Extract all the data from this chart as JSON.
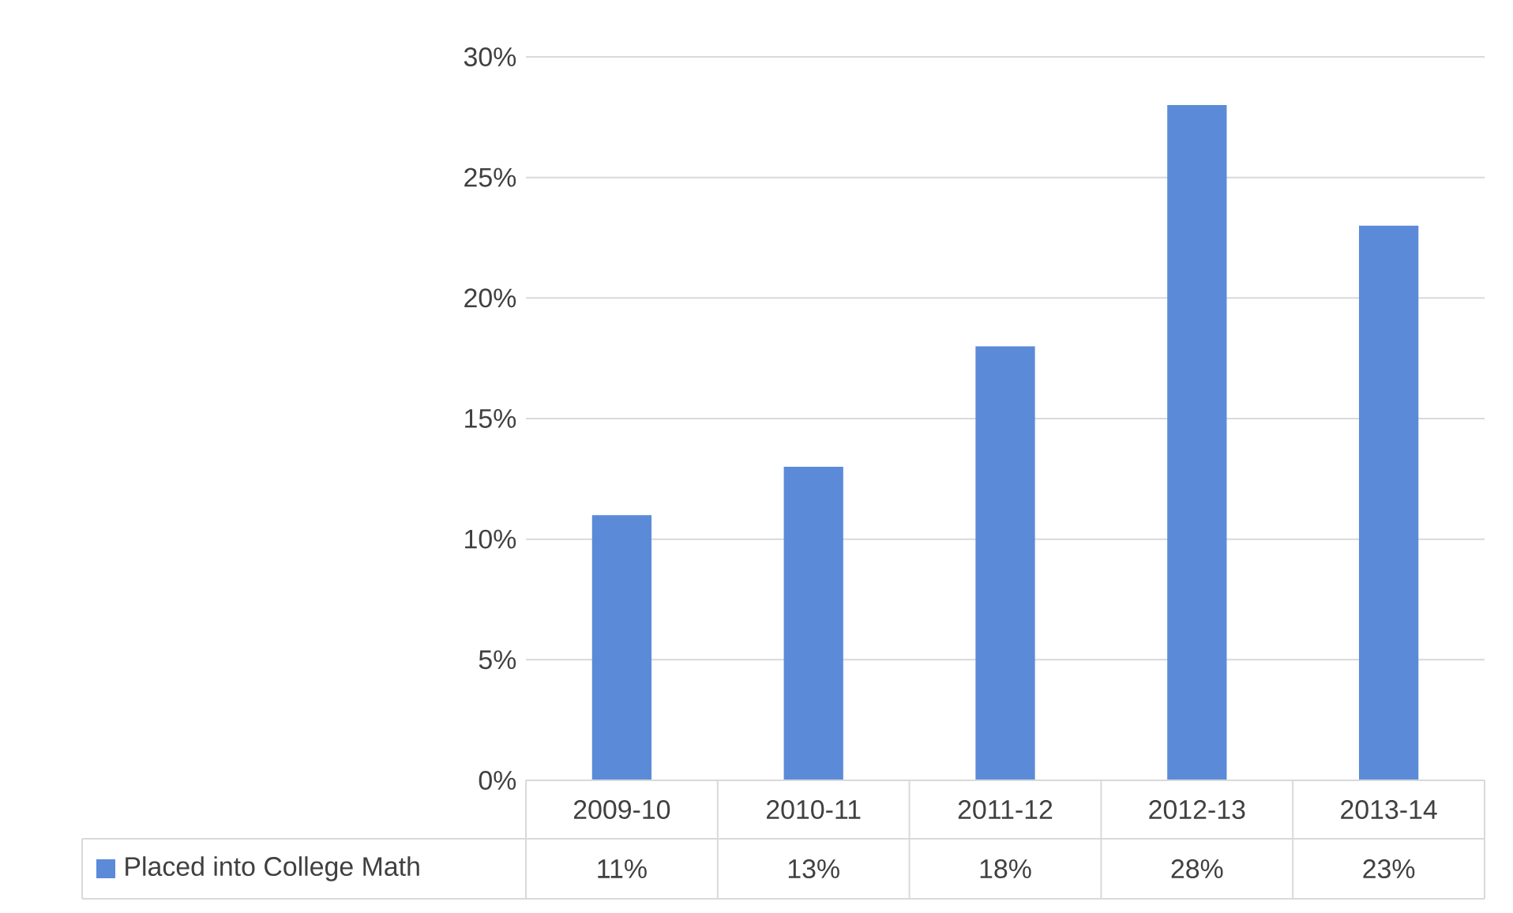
{
  "chart_data": {
    "type": "bar",
    "categories": [
      "2009-10",
      "2010-11",
      "2011-12",
      "2012-13",
      "2013-14"
    ],
    "series": [
      {
        "name": "Placed into College Math",
        "color": "#5b8bd8",
        "values": [
          11,
          13,
          18,
          28,
          23
        ],
        "value_labels": [
          "11%",
          "13%",
          "18%",
          "28%",
          "23%"
        ]
      }
    ],
    "ylim": [
      0,
      30
    ],
    "yticks": [
      {
        "value": 0,
        "label": "0%"
      },
      {
        "value": 5,
        "label": "5%"
      },
      {
        "value": 10,
        "label": "10%"
      },
      {
        "value": 15,
        "label": "15%"
      },
      {
        "value": 20,
        "label": "20%"
      },
      {
        "value": 25,
        "label": "25%"
      },
      {
        "value": 30,
        "label": "30%"
      }
    ],
    "grid": "y",
    "legend": "bottom"
  }
}
